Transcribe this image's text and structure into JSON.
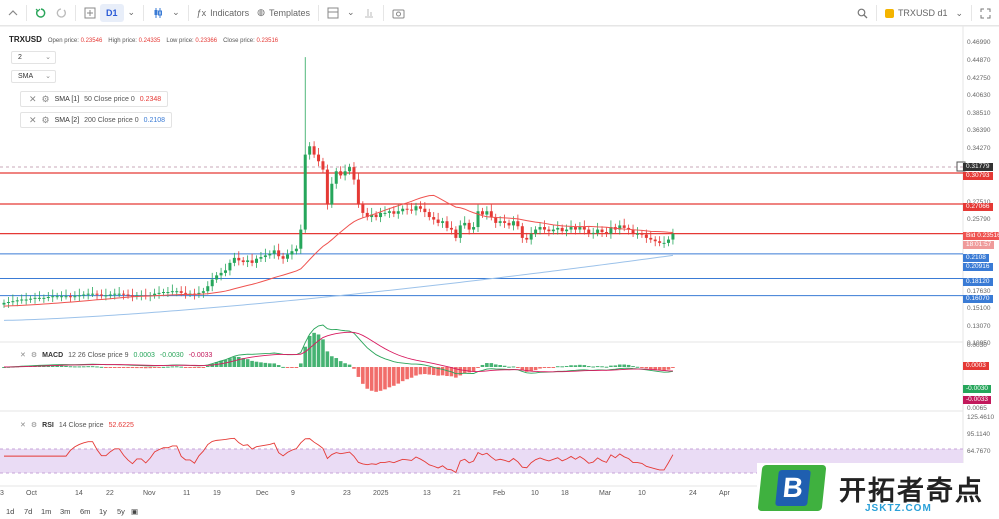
{
  "toolbar": {
    "interval": "D1",
    "indicators_label": "Indicators",
    "templates_label": "Templates",
    "symbol_label": "TRXUSD d1"
  },
  "legend": {
    "symbol": "TRXUSD",
    "open_label": "Open price:",
    "open_value": "0.23546",
    "high_label": "High price:",
    "high_value": "0.24335",
    "low_label": "Low price:",
    "low_value": "0.23366",
    "close_label": "Close price:",
    "close_value": "0.23516"
  },
  "selectors": {
    "count": "2",
    "type": "SMA"
  },
  "indicators": [
    {
      "name": "SMA [1]",
      "params": "50 Close price 0",
      "value": "0.2348"
    },
    {
      "name": "SMA [2]",
      "params": "200 Close price 0",
      "value": "0.2108"
    }
  ],
  "macd": {
    "name": "MACD",
    "params": "12 26 Close price 9",
    "v1": "0.0003",
    "v2": "-0.0030",
    "v3": "-0.0033"
  },
  "rsi": {
    "name": "RSI",
    "params": "14 Close price",
    "value": "52.6225"
  },
  "price_axis": [
    "0.46990",
    "0.44870",
    "0.42750",
    "0.40630",
    "0.38510",
    "0.36390",
    "0.34270",
    "0.27510",
    "0.25790",
    "0.17630",
    "0.15100",
    "0.13070",
    "0.10950"
  ],
  "price_tags": [
    {
      "text": "0.31779",
      "color": "#333333"
    },
    {
      "text": "0.30793",
      "color": "#e53935"
    },
    {
      "text": "0.27066",
      "color": "#e53935"
    },
    {
      "text": "Bid 0.23516",
      "color": "#ef5350"
    },
    {
      "text": "18:01:57",
      "color": "#ef9a9a"
    },
    {
      "text": "0.2108",
      "color": "#3a7bd5"
    },
    {
      "text": "0.20916",
      "color": "#3a7bd5"
    },
    {
      "text": "0.18120",
      "color": "#3a7bd5"
    },
    {
      "text": "0.16070",
      "color": "#3a7bd5"
    }
  ],
  "macd_axis": [
    "0.0030",
    "0.0003",
    "-0.0030",
    "-0.0033",
    "0.0065"
  ],
  "rsi_axis": [
    "125.4610",
    "95.1140",
    "64.7670"
  ],
  "time_axis": [
    "3",
    "Oct",
    "14",
    "22",
    "Nov",
    "11",
    "19",
    "Dec",
    "9",
    "23",
    "2025",
    "13",
    "21",
    "Feb",
    "10",
    "18",
    "Mar",
    "10",
    "24",
    "Apr"
  ],
  "timeframes": [
    "1d",
    "7d",
    "1m",
    "3m",
    "6m",
    "1y",
    "5y"
  ],
  "watermark": {
    "brand_letter": "B",
    "brand_text": "开拓者奇点",
    "url": "JSKTZ.COM"
  },
  "colors": {
    "up": "#26a65b",
    "down": "#e53935",
    "sma50": "#ef5350",
    "sma200": "#9cc2ea",
    "rsi_band": "#eadcf5",
    "hline_red": "#e53935",
    "hline_blue": "#3a7bd5"
  },
  "chart_data": {
    "type": "candlestick",
    "symbol": "TRXUSD",
    "interval": "D1",
    "closes": [
      0.152,
      0.153,
      0.154,
      0.155,
      0.156,
      0.156,
      0.157,
      0.158,
      0.158,
      0.158,
      0.159,
      0.16,
      0.16,
      0.16,
      0.16,
      0.159,
      0.16,
      0.161,
      0.162,
      0.163,
      0.163,
      0.162,
      0.161,
      0.161,
      0.162,
      0.163,
      0.163,
      0.162,
      0.161,
      0.16,
      0.161,
      0.161,
      0.16,
      0.161,
      0.163,
      0.164,
      0.165,
      0.165,
      0.166,
      0.166,
      0.164,
      0.163,
      0.163,
      0.162,
      0.164,
      0.166,
      0.172,
      0.18,
      0.185,
      0.188,
      0.191,
      0.2,
      0.206,
      0.203,
      0.201,
      0.203,
      0.2,
      0.205,
      0.207,
      0.209,
      0.211,
      0.215,
      0.208,
      0.205,
      0.21,
      0.214,
      0.217,
      0.24,
      0.33,
      0.34,
      0.33,
      0.322,
      0.312,
      0.27,
      0.295,
      0.31,
      0.305,
      0.31,
      0.315,
      0.3,
      0.27,
      0.26,
      0.255,
      0.258,
      0.255,
      0.26,
      0.26,
      0.262,
      0.259,
      0.262,
      0.265,
      0.264,
      0.263,
      0.268,
      0.265,
      0.261,
      0.255,
      0.252,
      0.248,
      0.25,
      0.242,
      0.24,
      0.23,
      0.245,
      0.248,
      0.24,
      0.243,
      0.262,
      0.258,
      0.262,
      0.255,
      0.248,
      0.25,
      0.248,
      0.245,
      0.25,
      0.244,
      0.23,
      0.228,
      0.235,
      0.24,
      0.243,
      0.24,
      0.238,
      0.24,
      0.242,
      0.238,
      0.24,
      0.243,
      0.24,
      0.243,
      0.24,
      0.235,
      0.236,
      0.24,
      0.237,
      0.235,
      0.243,
      0.24,
      0.245,
      0.242,
      0.24,
      0.235,
      0.235,
      0.234,
      0.23,
      0.228,
      0.226,
      0.224,
      0.224,
      0.228,
      0.235
    ],
    "sma50_start": 0.148,
    "sma200_start": 0.131
  }
}
